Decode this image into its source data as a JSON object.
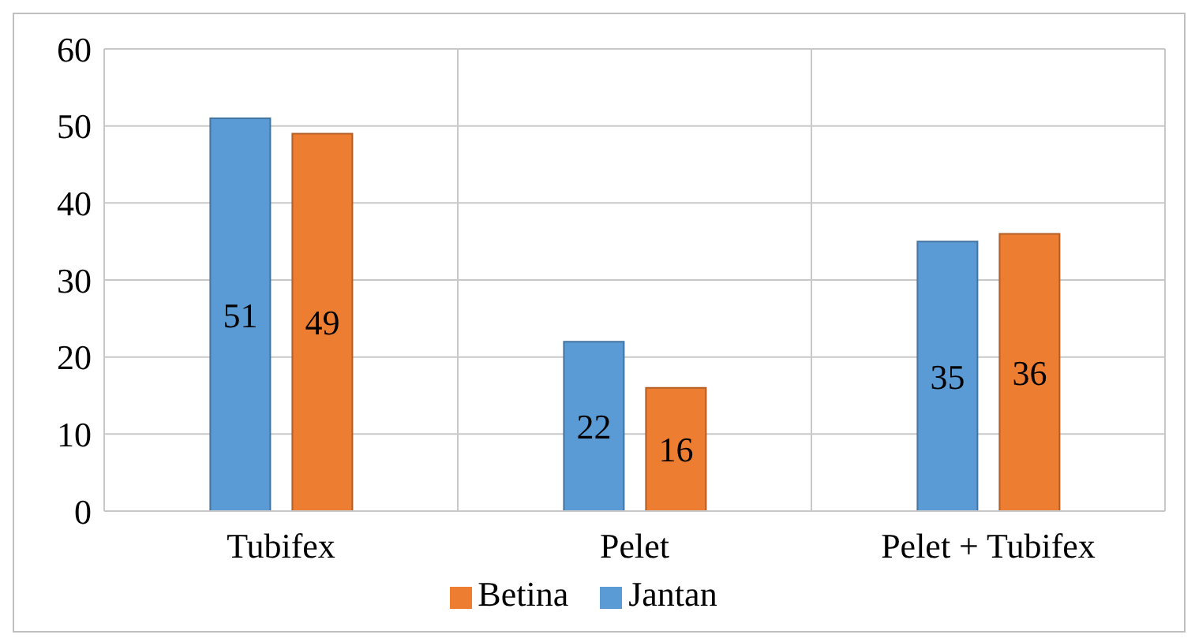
{
  "chart_data": {
    "type": "bar",
    "categories": [
      "Tubifex",
      "Pelet",
      "Pelet + Tubifex"
    ],
    "series": [
      {
        "name": "Jantan",
        "color": "#5b9bd5",
        "values": [
          51,
          22,
          35
        ]
      },
      {
        "name": "Betina",
        "color": "#ed7d31",
        "values": [
          49,
          16,
          36
        ]
      }
    ],
    "ylim": [
      0,
      60
    ],
    "yticks": [
      0,
      10,
      20,
      30,
      40,
      50,
      60
    ],
    "grid": true,
    "legend": "bottom",
    "data_labels": true
  }
}
